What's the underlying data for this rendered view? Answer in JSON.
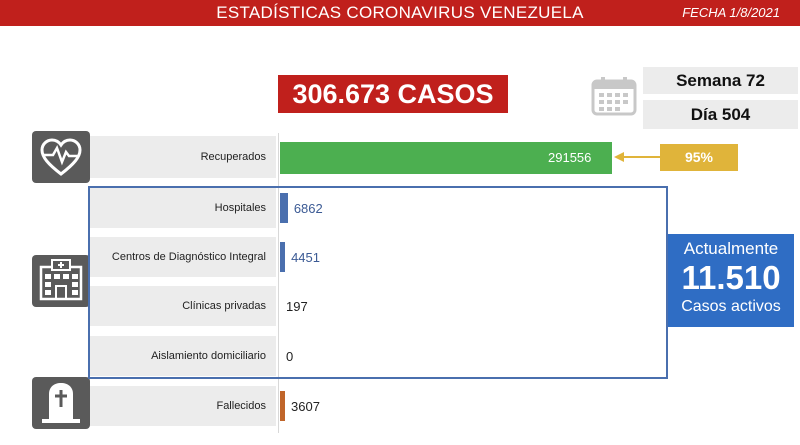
{
  "header": {
    "title": "ESTADÍSTICAS CORONAVIRUS VENEZUELA",
    "date": "FECHA 1/8/2021"
  },
  "total_cases": "306.673 CASOS",
  "week": "Semana 72",
  "day": "Día 504",
  "recovered_percent": "95%",
  "active": {
    "top_label": "Actualmente",
    "count": "11.510",
    "bottom_label": "Casos activos"
  },
  "colors": {
    "header": "#c0201c",
    "recovered": "#4caf50",
    "hospital": "#4a6fae",
    "fallecidos": "#c0652a",
    "badge": "#e0b43a",
    "panel": "#2f6dc4"
  },
  "icons": {
    "recovered": "heart-pulse-icon",
    "hospital": "hospital-building-icon",
    "deaths": "tombstone-cross-icon",
    "calendar": "calendar-icon"
  },
  "chart_data": {
    "type": "bar",
    "orientation": "horizontal",
    "categories": [
      "Recuperados",
      "Hospitales",
      "Centros de Diagnóstico Integral",
      "Clínicas privadas",
      "Aislamiento domiciliario",
      "Fallecidos"
    ],
    "values": [
      291556,
      6862,
      4451,
      197,
      0,
      3607
    ],
    "value_labels": [
      "291556",
      "6862",
      "4451",
      "197",
      "0",
      "3607"
    ],
    "bar_colors": [
      "#4caf50",
      "#4a6fae",
      "#4a6fae",
      "#4a6fae",
      "#4a6fae",
      "#c0652a"
    ],
    "xlim": [
      0,
      291556
    ]
  }
}
